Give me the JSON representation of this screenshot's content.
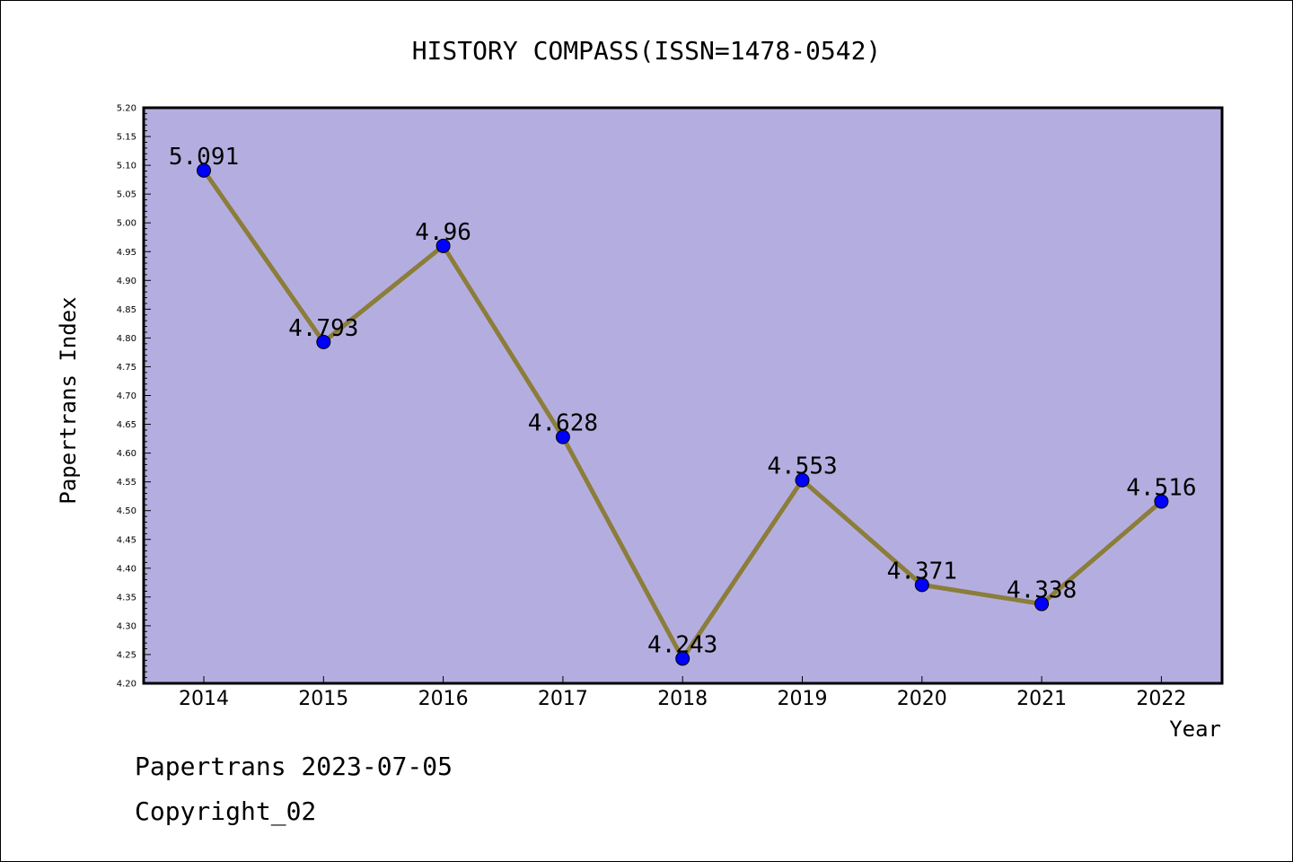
{
  "chart_data": {
    "type": "line",
    "title": "HISTORY COMPASS(ISSN=1478-0542)",
    "xlabel": "Year",
    "ylabel": "Papertrans Index",
    "categories": [
      "2014",
      "2015",
      "2016",
      "2017",
      "2018",
      "2019",
      "2020",
      "2021",
      "2022"
    ],
    "values": [
      5.091,
      4.793,
      4.96,
      4.628,
      4.243,
      4.553,
      4.371,
      4.338,
      4.516
    ],
    "data_labels": [
      "5.091",
      "4.793",
      "4.96",
      "4.628",
      "4.243",
      "4.553",
      "4.371",
      "4.338",
      "4.516"
    ],
    "ylim": [
      4.2,
      5.2
    ],
    "yticks": [
      "4.20",
      "4.25",
      "4.30",
      "4.35",
      "4.40",
      "4.45",
      "4.50",
      "4.55",
      "4.60",
      "4.65",
      "4.70",
      "4.75",
      "4.80",
      "4.85",
      "4.90",
      "4.95",
      "5.00",
      "5.05",
      "5.10",
      "5.15",
      "5.20"
    ],
    "grid": false,
    "colors": {
      "plot_background": "#b4aee0",
      "line": "#8b7d3a",
      "marker": "#0000ff"
    }
  },
  "footer": {
    "line1": "Papertrans 2023-07-05",
    "line2": "Copyright_02"
  }
}
